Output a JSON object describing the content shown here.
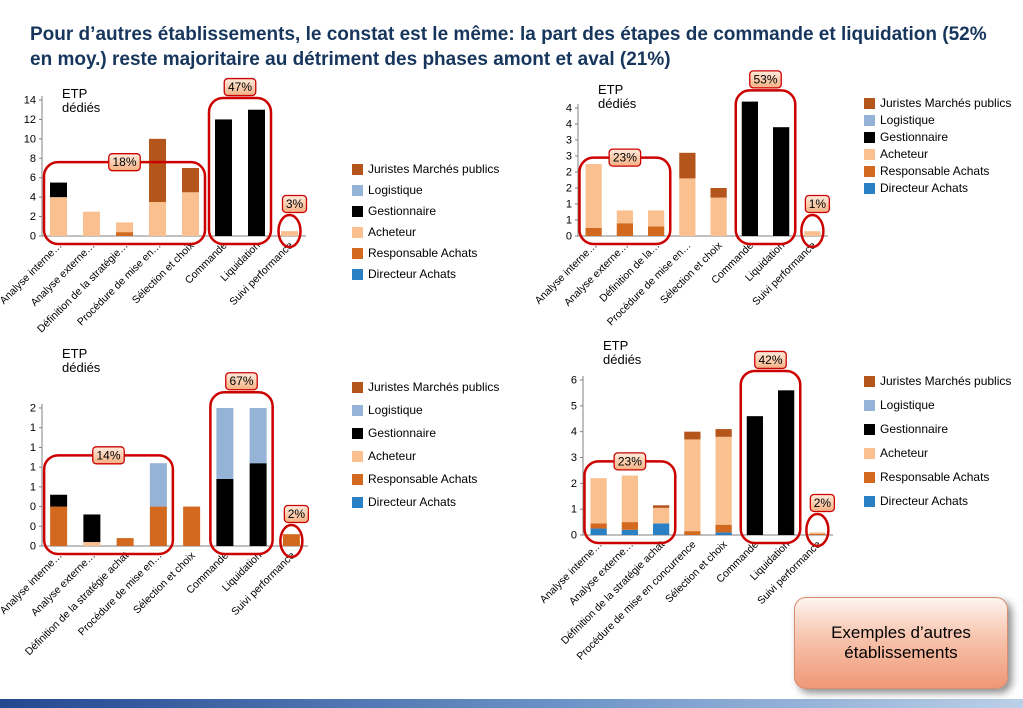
{
  "slide": {
    "title": "Pour d’autres établissements, le constat est le même: la part des étapes de commande et liquidation (52% en moy.) reste majoritaire au détriment des phases amont et aval (21%)",
    "note_box": "Exemples d’autres établissements"
  },
  "colors": {
    "title": "#17365D",
    "highlight": "#CC0000",
    "badge_fill_top": "#FDEBDD",
    "badge_fill_bottom": "#F5B183",
    "axis": "#808080"
  },
  "legend": [
    {
      "label": "Juristes Marchés publics",
      "color": "#B4551B"
    },
    {
      "label": "Logistique",
      "color": "#95B3D7"
    },
    {
      "label": "Gestionnaire",
      "color": "#000000"
    },
    {
      "label": "Acheteur",
      "color": "#FAC090"
    },
    {
      "label": "Responsable Achats",
      "color": "#D2691E"
    },
    {
      "label": "Directeur Achats",
      "color": "#2980C4"
    }
  ],
  "chart_data": [
    {
      "type": "bar",
      "stacked": true,
      "position": "top-left",
      "axis_title": "ETP dédiés",
      "ymax": 14,
      "yticks": [
        {
          "v": 0,
          "label": "0"
        },
        {
          "v": 2,
          "label": "2"
        },
        {
          "v": 4,
          "label": "4"
        },
        {
          "v": 6,
          "label": "6"
        },
        {
          "v": 8,
          "label": "8"
        },
        {
          "v": 10,
          "label": "10"
        },
        {
          "v": 12,
          "label": "12"
        },
        {
          "v": 14,
          "label": "14"
        }
      ],
      "categories": [
        "Analyse interne…",
        "Analyse externe…",
        "Définition de la stratégie…",
        "Procédure de mise en…",
        "Sélection et choix",
        "Commande",
        "Liquidation",
        "Suivi performance"
      ],
      "series": [
        {
          "name": "Directeur Achats",
          "values": [
            0,
            0,
            0,
            0,
            0,
            0,
            0,
            0
          ]
        },
        {
          "name": "Responsable Achats",
          "values": [
            0,
            0,
            0.4,
            0,
            0,
            0,
            0,
            0
          ]
        },
        {
          "name": "Acheteur",
          "values": [
            4,
            2.5,
            1,
            3.5,
            4.5,
            0,
            0,
            0.5
          ]
        },
        {
          "name": "Juristes Marchés publics",
          "values": [
            0,
            0,
            0,
            6.5,
            2.5,
            0,
            0,
            0
          ]
        },
        {
          "name": "Gestionnaire",
          "values": [
            1.5,
            0,
            0,
            0,
            0,
            12,
            13,
            0
          ]
        },
        {
          "name": "Logistique",
          "values": [
            0,
            0,
            0,
            0,
            0,
            0,
            0,
            0
          ]
        }
      ],
      "callouts": [
        {
          "type": "box",
          "label": "18%",
          "from": 0,
          "to": 4,
          "top": 7.6,
          "badge": "edge"
        },
        {
          "type": "box",
          "label": "47%",
          "from": 5,
          "to": 6,
          "top": 14.2,
          "badge": "above"
        },
        {
          "type": "ellipse",
          "label": "3%",
          "cat": 7
        }
      ]
    },
    {
      "type": "bar",
      "stacked": true,
      "position": "top-right",
      "axis_title": "ETP dédiés",
      "ymax": 4,
      "yticks": [
        {
          "v": 0,
          "label": "0"
        },
        {
          "v": 0.5,
          "label": "1"
        },
        {
          "v": 1,
          "label": "1"
        },
        {
          "v": 1.5,
          "label": "2"
        },
        {
          "v": 2,
          "label": "2"
        },
        {
          "v": 2.5,
          "label": "3"
        },
        {
          "v": 3,
          "label": "3"
        },
        {
          "v": 3.5,
          "label": "4"
        },
        {
          "v": 4,
          "label": "4"
        }
      ],
      "categories": [
        "Analyse interne…",
        "Analyse externe…",
        "Définition de la…",
        "Procédure de mise en…",
        "Sélection et choix",
        "Commande",
        "Liquidation",
        "Suivi performance"
      ],
      "series": [
        {
          "name": "Directeur Achats",
          "values": [
            0,
            0,
            0,
            0,
            0,
            0,
            0,
            0
          ]
        },
        {
          "name": "Responsable Achats",
          "values": [
            0.25,
            0.4,
            0.3,
            0,
            0,
            0,
            0,
            0
          ]
        },
        {
          "name": "Acheteur",
          "values": [
            2,
            0.4,
            0.5,
            1.8,
            1.2,
            0,
            0,
            0.15
          ]
        },
        {
          "name": "Juristes Marchés publics",
          "values": [
            0,
            0,
            0,
            0.8,
            0.3,
            0,
            0,
            0
          ]
        },
        {
          "name": "Gestionnaire",
          "values": [
            0,
            0,
            0,
            0,
            0,
            4.2,
            3.4,
            0
          ]
        },
        {
          "name": "Logistique",
          "values": [
            0,
            0,
            0,
            0,
            0,
            0,
            0,
            0
          ]
        }
      ],
      "callouts": [
        {
          "type": "box",
          "label": "23%",
          "from": 0,
          "to": 2,
          "top": 2.45,
          "badge": "edge"
        },
        {
          "type": "box",
          "label": "53%",
          "from": 5,
          "to": 6,
          "top": 4.55,
          "badge": "above"
        },
        {
          "type": "ellipse",
          "label": "1%",
          "cat": 7
        }
      ]
    },
    {
      "type": "bar",
      "stacked": true,
      "position": "bottom-left",
      "axis_title": "ETP dédiés",
      "ymax": 1.75,
      "yticks": [
        {
          "v": 0,
          "label": "0"
        },
        {
          "v": 0.25,
          "label": "0"
        },
        {
          "v": 0.5,
          "label": "0"
        },
        {
          "v": 0.75,
          "label": "1"
        },
        {
          "v": 1,
          "label": "1"
        },
        {
          "v": 1.25,
          "label": "1"
        },
        {
          "v": 1.5,
          "label": "1"
        },
        {
          "v": 1.75,
          "label": "2"
        }
      ],
      "categories": [
        "Analyse interne…",
        "Analyse externe…",
        "Définition de la stratégie achat",
        "Procédure de mise en…",
        "Sélection et choix",
        "Commande",
        "Liquidation",
        "Suivi performance"
      ],
      "series": [
        {
          "name": "Directeur Achats",
          "values": [
            0,
            0,
            0,
            0,
            0,
            0,
            0,
            0
          ]
        },
        {
          "name": "Responsable Achats",
          "values": [
            0.5,
            0,
            0.1,
            0.5,
            0.5,
            0,
            0,
            0.15
          ]
        },
        {
          "name": "Acheteur",
          "values": [
            0,
            0.05,
            0,
            0,
            0,
            0,
            0,
            0
          ]
        },
        {
          "name": "Juristes Marchés publics",
          "values": [
            0,
            0,
            0,
            0,
            0,
            0,
            0,
            0
          ]
        },
        {
          "name": "Gestionnaire",
          "values": [
            0.15,
            0.35,
            0,
            0,
            0,
            0.85,
            1.05,
            0
          ]
        },
        {
          "name": "Logistique",
          "values": [
            0,
            0,
            0,
            0.55,
            0,
            0.9,
            0.7,
            0
          ]
        }
      ],
      "callouts": [
        {
          "type": "box",
          "label": "14%",
          "from": 0,
          "to": 3,
          "top": 1.15,
          "badge": "edge"
        },
        {
          "type": "box",
          "label": "67%",
          "from": 5,
          "to": 6,
          "top": 1.95,
          "badge": "above"
        },
        {
          "type": "ellipse",
          "label": "2%",
          "cat": 7
        }
      ]
    },
    {
      "type": "bar",
      "stacked": true,
      "position": "bottom-right",
      "axis_title": "ETP dédiés",
      "ymax": 6,
      "yticks": [
        {
          "v": 0,
          "label": "0"
        },
        {
          "v": 1,
          "label": "1"
        },
        {
          "v": 2,
          "label": "2"
        },
        {
          "v": 3,
          "label": "3"
        },
        {
          "v": 4,
          "label": "4"
        },
        {
          "v": 5,
          "label": "5"
        },
        {
          "v": 6,
          "label": "6"
        }
      ],
      "categories": [
        "Analyse interne…",
        "Analyse externe…",
        "Définition de la stratégie achat",
        "Procédure de mise en concurrence",
        "Sélection et choix",
        "Commande",
        "Liquidation",
        "Suivi performance"
      ],
      "series": [
        {
          "name": "Directeur Achats",
          "values": [
            0.25,
            0.2,
            0.45,
            0,
            0.1,
            0,
            0,
            0
          ]
        },
        {
          "name": "Responsable Achats",
          "values": [
            0.2,
            0.3,
            0,
            0.15,
            0.3,
            0,
            0,
            0.05
          ]
        },
        {
          "name": "Acheteur",
          "values": [
            1.75,
            1.8,
            0.6,
            3.55,
            3.4,
            0,
            0,
            0.05
          ]
        },
        {
          "name": "Juristes Marchés publics",
          "values": [
            0,
            0,
            0.1,
            0.3,
            0.3,
            0,
            0,
            0
          ]
        },
        {
          "name": "Gestionnaire",
          "values": [
            0,
            0,
            0,
            0,
            0,
            4.6,
            5.6,
            0
          ]
        },
        {
          "name": "Logistique",
          "values": [
            0,
            0,
            0,
            0,
            0,
            0,
            0,
            0
          ]
        }
      ],
      "callouts": [
        {
          "type": "box",
          "label": "23%",
          "from": 0,
          "to": 2,
          "top": 2.85,
          "badge": "edge"
        },
        {
          "type": "box",
          "label": "42%",
          "from": 5,
          "to": 6,
          "top": 6.35,
          "badge": "above"
        },
        {
          "type": "ellipse",
          "label": "2%",
          "cat": 7
        }
      ]
    }
  ]
}
